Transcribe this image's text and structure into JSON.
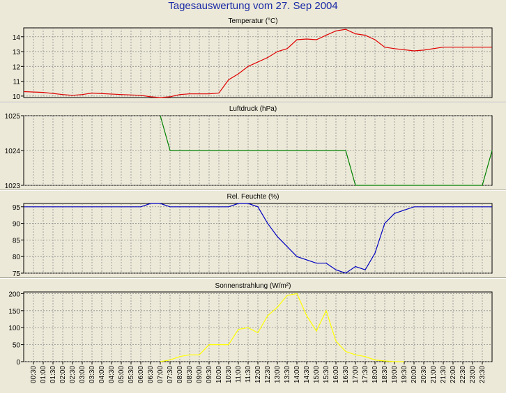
{
  "window": {
    "title": "Tagesauswertung vom 27. Sep 2004"
  },
  "colors": {
    "background": "#ece9d8",
    "plot_background": "#ece9d8",
    "title": "#1a2aa6",
    "grid": "#8c8c8c",
    "temperature": "#e00000",
    "pressure": "#008000",
    "humidity": "#0000c0",
    "radiation": "#ffff00"
  },
  "chart_data": [
    {
      "type": "line",
      "title": "Temperatur (°C)",
      "xlabel": "",
      "ylabel": "",
      "ylim": [
        9.9,
        14.6
      ],
      "yticks": [
        10,
        11,
        12,
        13,
        14
      ],
      "grid": true,
      "series": [
        {
          "color_key": "temperature",
          "points": [
            [
              "00:00",
              10.3
            ],
            [
              "01:00",
              10.25
            ],
            [
              "02:00",
              10.1
            ],
            [
              "02:30",
              10.05
            ],
            [
              "03:00",
              10.1
            ],
            [
              "03:30",
              10.2
            ],
            [
              "05:00",
              10.1
            ],
            [
              "06:00",
              10.05
            ],
            [
              "06:30",
              9.95
            ],
            [
              "07:00",
              9.9
            ],
            [
              "07:30",
              9.95
            ],
            [
              "08:00",
              10.1
            ],
            [
              "08:30",
              10.15
            ],
            [
              "09:30",
              10.15
            ],
            [
              "10:00",
              10.2
            ],
            [
              "10:30",
              11.1
            ],
            [
              "11:00",
              11.5
            ],
            [
              "11:30",
              12.0
            ],
            [
              "12:00",
              12.3
            ],
            [
              "12:30",
              12.6
            ],
            [
              "13:00",
              13.0
            ],
            [
              "13:30",
              13.2
            ],
            [
              "14:00",
              13.8
            ],
            [
              "14:30",
              13.85
            ],
            [
              "15:00",
              13.8
            ],
            [
              "15:30",
              14.1
            ],
            [
              "16:00",
              14.4
            ],
            [
              "16:30",
              14.5
            ],
            [
              "17:00",
              14.2
            ],
            [
              "17:30",
              14.1
            ],
            [
              "18:00",
              13.8
            ],
            [
              "18:30",
              13.3
            ],
            [
              "19:00",
              13.2
            ],
            [
              "20:00",
              13.05
            ],
            [
              "20:30",
              13.1
            ],
            [
              "21:30",
              13.3
            ],
            [
              "22:00",
              13.3
            ],
            [
              "24:00",
              13.3
            ]
          ]
        }
      ]
    },
    {
      "type": "line",
      "title": "Luftdruck (hPa)",
      "xlabel": "",
      "ylabel": "",
      "ylim": [
        1023,
        1025
      ],
      "yticks": [
        1023,
        1024,
        1025
      ],
      "grid": true,
      "series": [
        {
          "color_key": "pressure",
          "points": [
            [
              "07:00",
              1025
            ],
            [
              "07:30",
              1024
            ],
            [
              "16:30",
              1024
            ],
            [
              "17:00",
              1023
            ],
            [
              "23:30",
              1023
            ],
            [
              "24:00",
              1024
            ]
          ]
        }
      ]
    },
    {
      "type": "line",
      "title": "Rel. Feuchte (%)",
      "xlabel": "",
      "ylabel": "",
      "ylim": [
        75,
        96
      ],
      "yticks": [
        75,
        80,
        85,
        90,
        95
      ],
      "grid": true,
      "series": [
        {
          "color_key": "humidity",
          "points": [
            [
              "00:00",
              95
            ],
            [
              "06:00",
              95
            ],
            [
              "06:30",
              96
            ],
            [
              "07:00",
              96
            ],
            [
              "07:30",
              95
            ],
            [
              "10:30",
              95
            ],
            [
              "11:00",
              96
            ],
            [
              "11:30",
              96
            ],
            [
              "12:00",
              95
            ],
            [
              "12:30",
              90
            ],
            [
              "13:00",
              86
            ],
            [
              "14:00",
              80
            ],
            [
              "15:00",
              78
            ],
            [
              "15:30",
              78
            ],
            [
              "16:00",
              76
            ],
            [
              "16:30",
              75
            ],
            [
              "17:00",
              77
            ],
            [
              "17:30",
              76
            ],
            [
              "18:00",
              81
            ],
            [
              "18:30",
              90
            ],
            [
              "19:00",
              93
            ],
            [
              "20:00",
              95
            ],
            [
              "24:00",
              95
            ]
          ]
        }
      ]
    },
    {
      "type": "line",
      "title": "Sonnenstrahlung (W/m²)",
      "xlabel": "",
      "ylabel": "",
      "ylim": [
        0,
        205
      ],
      "yticks": [
        0,
        50,
        100,
        150,
        200
      ],
      "grid": true,
      "x_tick_labels": [
        "00:30",
        "01:00",
        "01:30",
        "02:00",
        "02:30",
        "03:00",
        "03:30",
        "04:00",
        "04:30",
        "05:00",
        "05:30",
        "06:00",
        "06:30",
        "07:00",
        "07:30",
        "08:00",
        "08:30",
        "09:00",
        "09:30",
        "10:00",
        "10:30",
        "11:00",
        "11:30",
        "12:00",
        "12:30",
        "13:00",
        "13:30",
        "14:00",
        "14:30",
        "15:00",
        "15:30",
        "16:00",
        "16:30",
        "17:00",
        "17:30",
        "18:00",
        "18:30",
        "19:00",
        "19:30",
        "20:00",
        "20:30",
        "21:00",
        "21:30",
        "22:00",
        "22:30",
        "23:00",
        "23:30"
      ],
      "series": [
        {
          "color_key": "radiation",
          "points": [
            [
              "07:00",
              0
            ],
            [
              "07:30",
              5
            ],
            [
              "08:00",
              15
            ],
            [
              "08:30",
              20
            ],
            [
              "09:00",
              20
            ],
            [
              "09:30",
              50
            ],
            [
              "10:00",
              50
            ],
            [
              "10:30",
              50
            ],
            [
              "11:00",
              95
            ],
            [
              "11:30",
              100
            ],
            [
              "12:00",
              85
            ],
            [
              "12:30",
              135
            ],
            [
              "13:00",
              160
            ],
            [
              "13:30",
              195
            ],
            [
              "14:00",
              200
            ],
            [
              "14:30",
              135
            ],
            [
              "15:00",
              90
            ],
            [
              "15:30",
              150
            ],
            [
              "16:00",
              60
            ],
            [
              "16:30",
              30
            ],
            [
              "17:00",
              20
            ],
            [
              "17:30",
              15
            ],
            [
              "18:00",
              5
            ],
            [
              "18:30",
              2
            ],
            [
              "19:00",
              0
            ],
            [
              "19:30",
              0
            ]
          ]
        }
      ]
    }
  ]
}
